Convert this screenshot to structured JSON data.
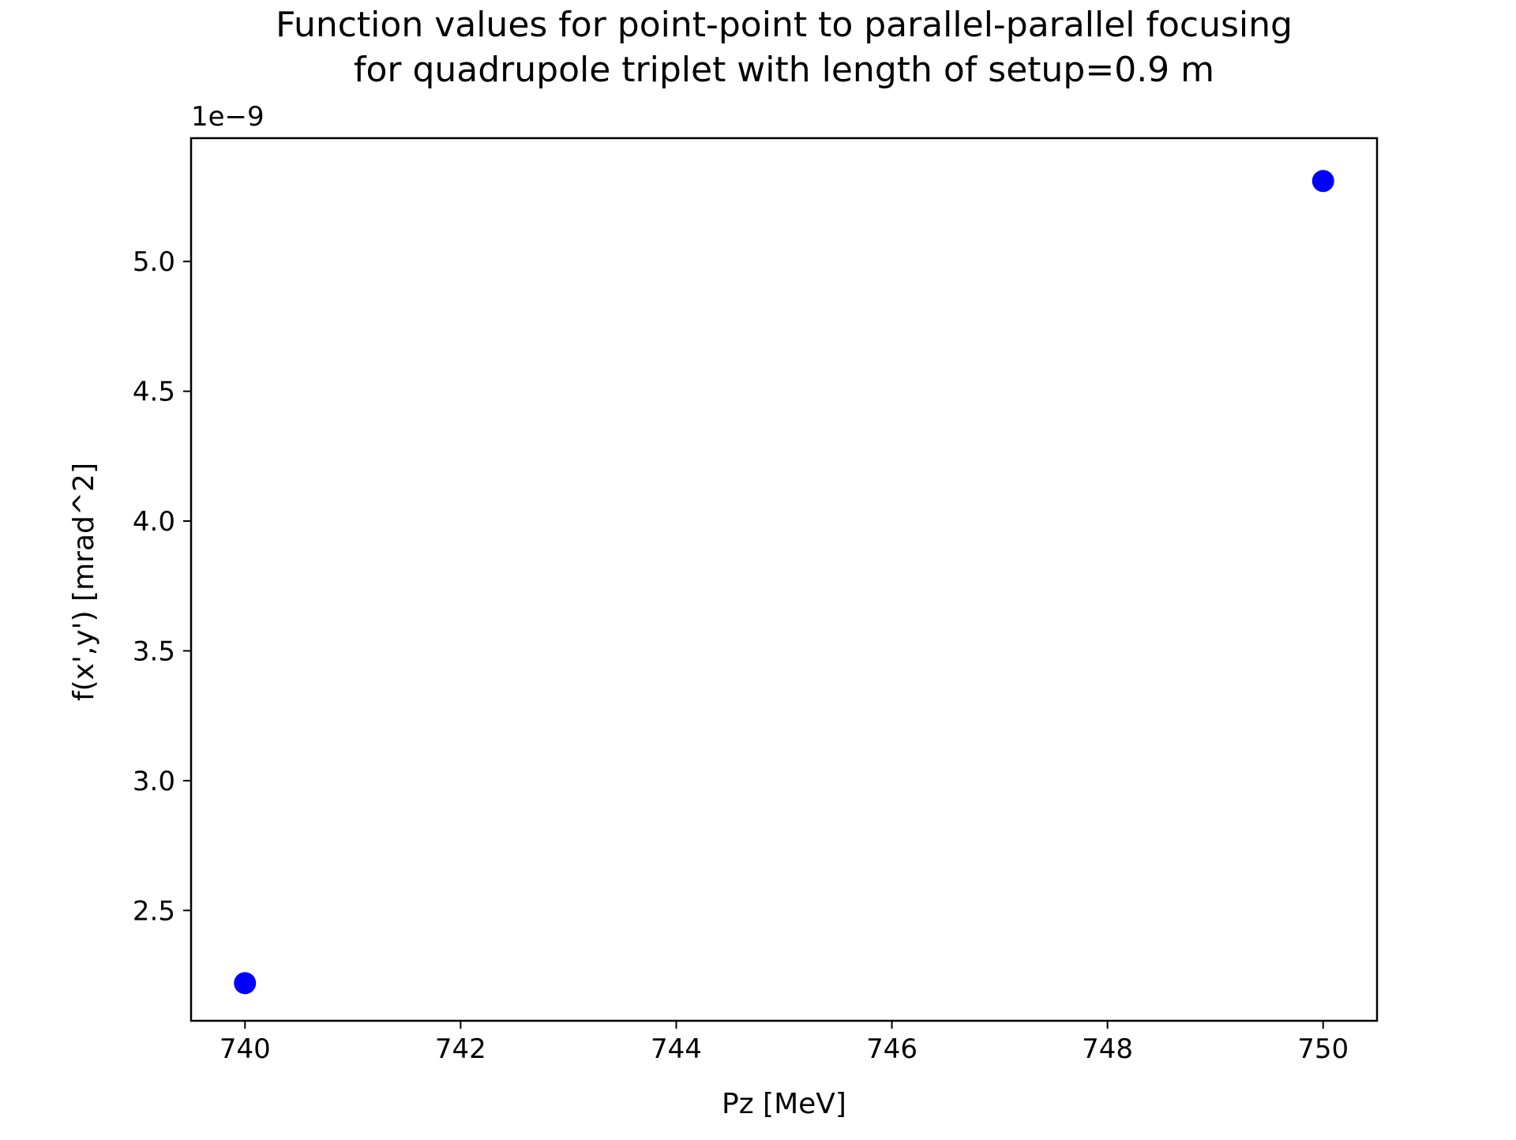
{
  "chart_data": {
    "type": "scatter",
    "title_lines": [
      "Function values for point-point to parallel-parallel focusing",
      "for quadrupole triplet with length of setup=0.9 m"
    ],
    "xlabel": "Pz [MeV]",
    "ylabel": "f(x',y') [mrad^2]",
    "y_offset_label": "1e−9",
    "xlim": [
      739.5,
      750.5
    ],
    "ylim": [
      2.075,
      5.475
    ],
    "x_ticks": [
      740,
      742,
      744,
      746,
      748,
      750
    ],
    "x_tick_labels": [
      "740",
      "742",
      "744",
      "746",
      "748",
      "750"
    ],
    "y_ticks": [
      2.5,
      3.0,
      3.5,
      4.0,
      4.5,
      5.0
    ],
    "y_tick_labels": [
      "2.5",
      "3.0",
      "3.5",
      "4.0",
      "4.5",
      "5.0"
    ],
    "grid": false,
    "series": [
      {
        "color": "#0000ff",
        "marker": "circle",
        "x": [
          740,
          750
        ],
        "y": [
          2.22,
          5.31
        ]
      }
    ]
  }
}
